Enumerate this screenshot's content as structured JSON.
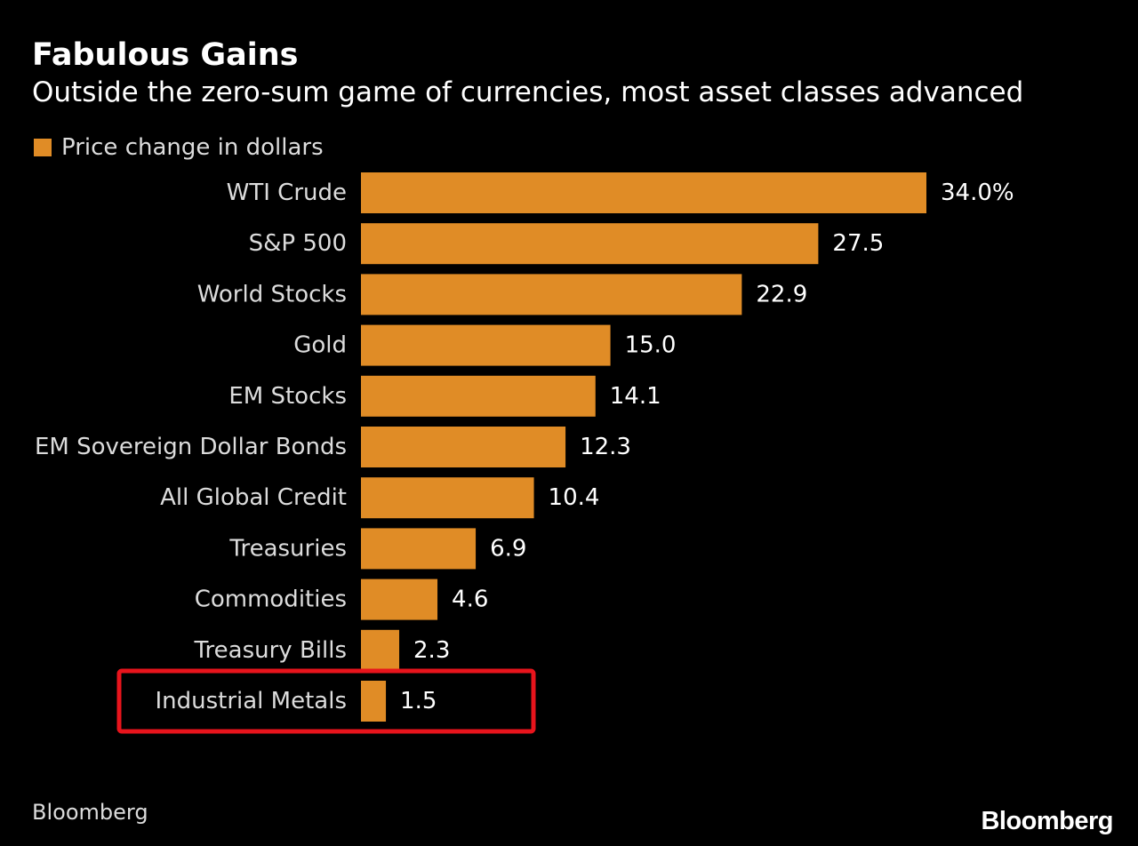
{
  "chart_data": {
    "type": "bar",
    "orientation": "horizontal",
    "title": "Fabulous Gains",
    "subtitle": "Outside the zero-sum game of currencies, most asset classes advanced",
    "categories": [
      "WTI Crude",
      "S&P 500",
      "World Stocks",
      "Gold",
      "EM Stocks",
      "EM Sovereign Dollar Bonds",
      "All Global Credit",
      "Treasuries",
      "Commodities",
      "Treasury Bills",
      "Industrial Metals"
    ],
    "series": [
      {
        "name": "Price change in dollars",
        "values": [
          34.0,
          27.5,
          22.9,
          15.0,
          14.1,
          12.3,
          10.4,
          6.9,
          4.6,
          2.3,
          1.5
        ],
        "labels": [
          "34.0%",
          "27.5",
          "22.9",
          "15.0",
          "14.1",
          "12.3",
          "10.4",
          "6.9",
          "4.6",
          "2.3",
          "1.5"
        ]
      }
    ],
    "xlim": [
      0,
      34
    ],
    "grid": false,
    "legend": "top-left",
    "highlighted_category": "Industrial Metals",
    "highlight_style": "red outline box",
    "source": "Bloomberg"
  },
  "colors": {
    "background": "#000000",
    "bar": "#e08c26",
    "highlight": "#e8141c",
    "text": "#ffffff",
    "label_text": "#dcdcdc"
  },
  "logo": {
    "text": "Bloomberg"
  }
}
